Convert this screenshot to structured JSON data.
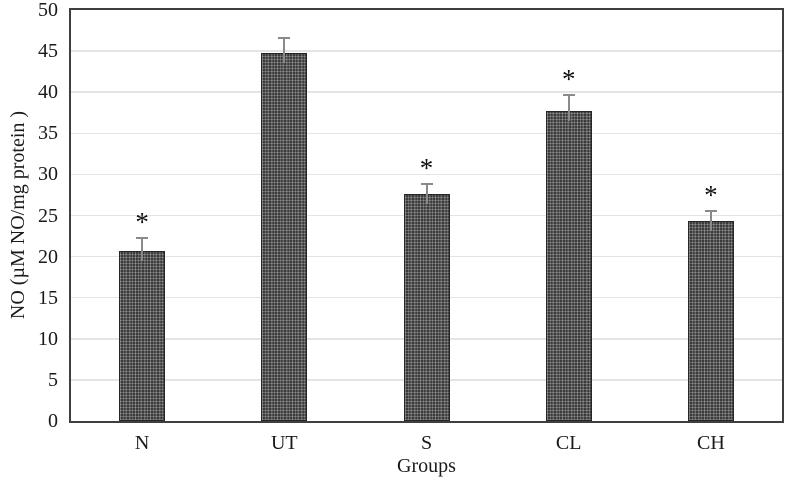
{
  "chart_data": {
    "type": "bar",
    "title": "",
    "xlabel": "Groups",
    "ylabel": "NO (µM NO/mg protein )",
    "categories": [
      "N",
      "UT",
      "S",
      "CL",
      "CH"
    ],
    "values": [
      20.7,
      44.8,
      27.6,
      37.7,
      24.3
    ],
    "error_up": [
      1.7,
      1.9,
      1.4,
      2.1,
      1.4
    ],
    "significance": [
      "*",
      "",
      "*",
      "*",
      "*"
    ],
    "ylim": [
      0,
      50
    ],
    "yticks": [
      0,
      5,
      10,
      15,
      20,
      25,
      30,
      35,
      40,
      45,
      50
    ],
    "grid": true,
    "legend": "none",
    "colors": {
      "bar_fill": "#3a3a3a",
      "axis_line": "#3f3f3f",
      "gridline": "#e4e4e4",
      "error_bar": "#8a8a8a",
      "significance_marker": "#111111",
      "text": "#1a1a1a",
      "background": "#ffffff"
    }
  }
}
